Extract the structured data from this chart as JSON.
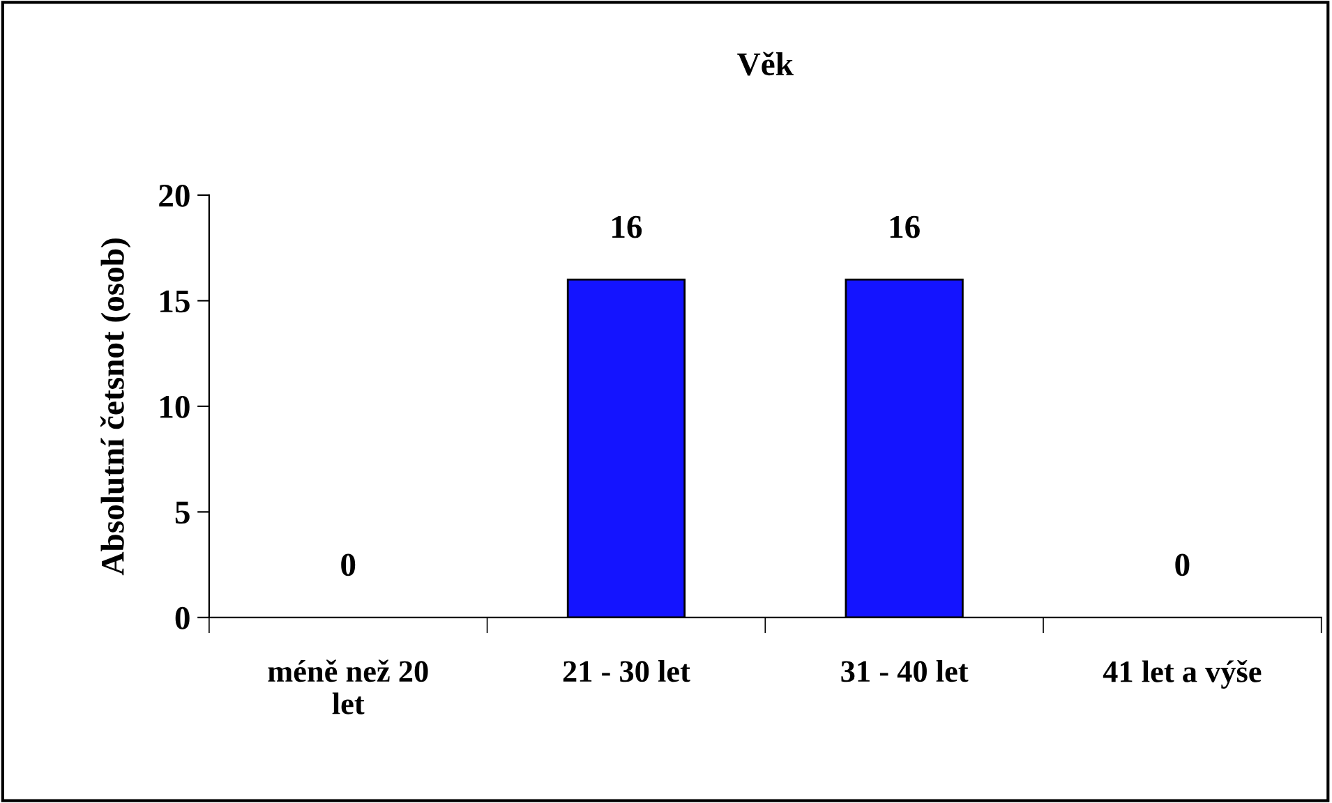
{
  "chart_data": {
    "type": "bar",
    "title": "Věk",
    "ylabel": "Absolutní četsnot (osob)",
    "categories": [
      "méně než 20\nlet",
      "21 - 30 let",
      "31 - 40 let",
      "41 let a výše"
    ],
    "values": [
      0,
      16,
      16,
      0
    ],
    "color": "#1414ff",
    "ylim": [
      0,
      20
    ],
    "yticks": [
      0,
      5,
      10,
      15,
      20
    ],
    "grid": false,
    "data_labels": true
  }
}
